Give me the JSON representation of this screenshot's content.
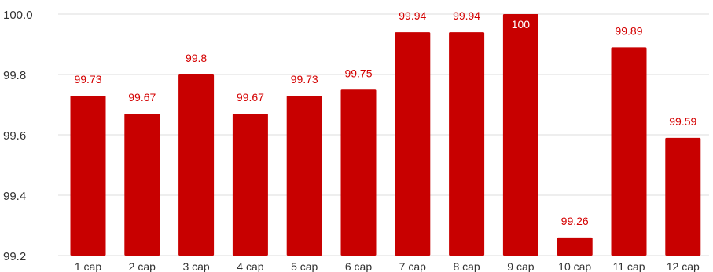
{
  "chart_data": {
    "type": "bar",
    "categories": [
      "1 cap",
      "2 cap",
      "3 cap",
      "4 cap",
      "5 cap",
      "6 cap",
      "7 cap",
      "8 cap",
      "9 cap",
      "10 cap",
      "11 cap",
      "12 cap"
    ],
    "values": [
      99.73,
      99.67,
      99.8,
      99.67,
      99.73,
      99.75,
      99.94,
      99.94,
      100,
      99.26,
      99.89,
      99.59
    ],
    "data_labels": [
      "99.73",
      "99.67",
      "99.8",
      "99.67",
      "99.73",
      "99.75",
      "99.94",
      "99.94",
      "100",
      "99.26",
      "99.89",
      "99.59"
    ],
    "y_ticks": [
      "99.2",
      "99.4",
      "99.6",
      "99.8",
      "100.0"
    ],
    "ylim": [
      99.2,
      100.0
    ],
    "grid": true,
    "bar_color": "#c80000",
    "label_color": "#d40000",
    "title": "",
    "xlabel": "",
    "ylabel": ""
  }
}
